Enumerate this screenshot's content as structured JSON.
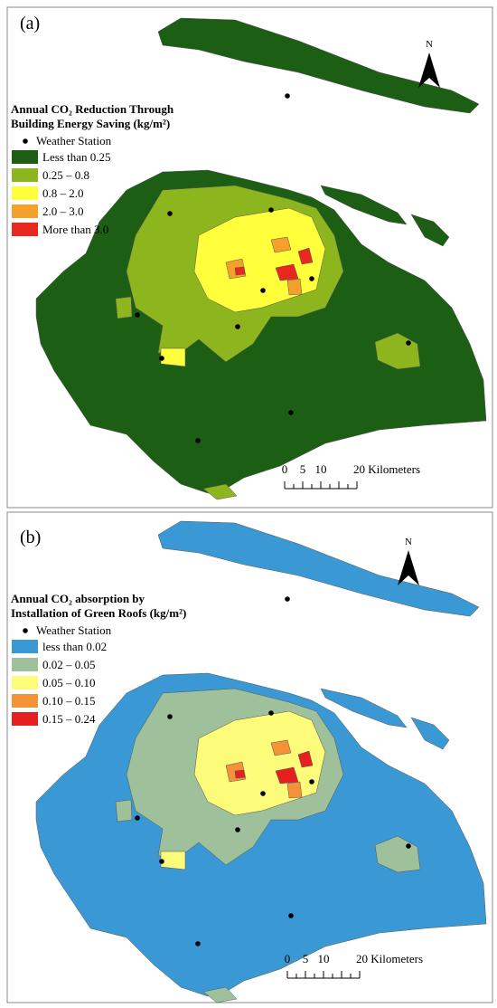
{
  "panels": [
    {
      "label": "(a)",
      "north": "N",
      "title": [
        "Annual CO₂ Reduction Through",
        "Building Energy Saving (kg/m²)"
      ],
      "station": "Weather Station",
      "classes": [
        {
          "label": "Less than 0.25",
          "color": "#1b5e14"
        },
        {
          "label": "0.25 – 0.8",
          "color": "#8db51e"
        },
        {
          "label": "0.8 – 2.0",
          "color": "#ffff3c"
        },
        {
          "label": "2.0 – 3.0",
          "color": "#f5a02a"
        },
        {
          "label": "More than 3.0",
          "color": "#e8281e"
        }
      ],
      "scale": [
        "0",
        "5",
        "10",
        "20 Kilometers"
      ]
    },
    {
      "label": "(b)",
      "north": "N",
      "title": [
        "Annual CO₂ absorption by",
        "Installation of Green Roofs (kg/m²)"
      ],
      "station": "Weather Station",
      "classes": [
        {
          "label": "less than 0.02",
          "color": "#3a98d4"
        },
        {
          "label": "0.02 – 0.05",
          "color": "#9ec09a"
        },
        {
          "label": "0.05 – 0.10",
          "color": "#fcfc7a"
        },
        {
          "label": "0.10 – 0.15",
          "color": "#f4923a"
        },
        {
          "label": "0.15 – 0.24",
          "color": "#e6201e"
        }
      ],
      "scale": [
        "0",
        "5",
        "10",
        "20 Kilometers"
      ]
    }
  ]
}
